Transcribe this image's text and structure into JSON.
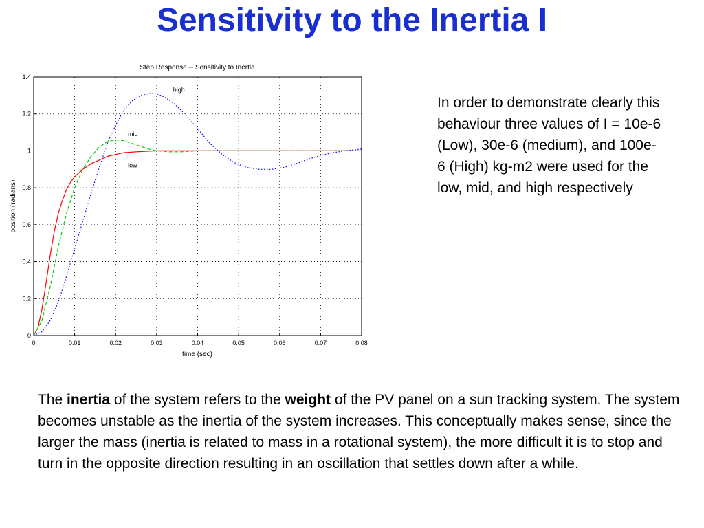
{
  "slide": {
    "title": "Sensitivity to the Inertia I",
    "side_note": "In order to demonstrate clearly this behaviour three values of I = 10e-6 (Low), 30e-6 (medium), and 100e-6 (High) kg-m2 were used for the low, mid, and high respectively",
    "body": {
      "p1": "The ",
      "b1": "inertia",
      "p2": " of the system refers to the ",
      "b2": "weight",
      "p3": " of the PV panel on a sun tracking system. The system becomes unstable as the inertia of the system increases. This conceptually makes sense, since the larger the mass (inertia is related to mass in a rotational system), the more difficult it is to stop and turn in the opposite direction resulting in an oscillation that settles down after a while."
    }
  },
  "colors": {
    "title": "#1a2fd0",
    "low": "#ff0000",
    "mid": "#00c800",
    "high": "#0000ff",
    "grid": "#000000"
  },
  "chart_data": {
    "type": "line",
    "title": "Step Response -- Sensitivity to Inertia",
    "xlabel": "time (sec)",
    "ylabel": "position (radians)",
    "xlim": [
      0,
      0.08
    ],
    "ylim": [
      0,
      1.4
    ],
    "xticks": [
      0,
      0.01,
      0.02,
      0.03,
      0.04,
      0.05,
      0.06,
      0.07,
      0.08
    ],
    "yticks": [
      0,
      0.2,
      0.4,
      0.6,
      0.8,
      1,
      1.2,
      1.4
    ],
    "xtick_labels": [
      "0",
      "0.01",
      "0.02",
      "0.03",
      "0.04",
      "0.05",
      "0.06",
      "0.07",
      "0.08"
    ],
    "ytick_labels": [
      "0",
      "0.2",
      "0.4",
      "0.6",
      "0.8",
      "1",
      "1.2",
      "1.4"
    ],
    "grid": true,
    "annotations": [
      {
        "text": "high",
        "x": 0.034,
        "y": 1.32
      },
      {
        "text": "mid",
        "x": 0.023,
        "y": 1.08
      },
      {
        "text": "low",
        "x": 0.023,
        "y": 0.91
      }
    ],
    "series": [
      {
        "name": "low",
        "style": "solid",
        "x": [
          0,
          0.001,
          0.002,
          0.003,
          0.004,
          0.005,
          0.006,
          0.007,
          0.008,
          0.009,
          0.01,
          0.012,
          0.014,
          0.016,
          0.018,
          0.02,
          0.022,
          0.025,
          0.03,
          0.04,
          0.05,
          0.06,
          0.07,
          0.08
        ],
        "y": [
          0,
          0.04,
          0.14,
          0.28,
          0.43,
          0.56,
          0.66,
          0.73,
          0.79,
          0.83,
          0.86,
          0.9,
          0.93,
          0.95,
          0.97,
          0.98,
          0.99,
          0.995,
          1.0,
          1.0,
          1.0,
          1.0,
          1.0,
          1.0
        ]
      },
      {
        "name": "mid",
        "style": "dashed",
        "x": [
          0,
          0.002,
          0.004,
          0.006,
          0.008,
          0.01,
          0.012,
          0.014,
          0.016,
          0.018,
          0.02,
          0.022,
          0.024,
          0.026,
          0.028,
          0.03,
          0.033,
          0.036,
          0.04,
          0.05,
          0.06,
          0.07,
          0.08
        ],
        "y": [
          0,
          0.08,
          0.26,
          0.48,
          0.66,
          0.8,
          0.9,
          0.97,
          1.02,
          1.05,
          1.06,
          1.055,
          1.04,
          1.025,
          1.01,
          1.0,
          0.995,
          0.995,
          1.0,
          1.0,
          1.0,
          1.0,
          1.0
        ]
      },
      {
        "name": "high",
        "style": "dotted",
        "x": [
          0,
          0.002,
          0.004,
          0.006,
          0.008,
          0.01,
          0.012,
          0.014,
          0.016,
          0.018,
          0.02,
          0.022,
          0.024,
          0.026,
          0.028,
          0.03,
          0.032,
          0.034,
          0.036,
          0.038,
          0.04,
          0.043,
          0.046,
          0.049,
          0.052,
          0.055,
          0.058,
          0.061,
          0.064,
          0.067,
          0.07,
          0.073,
          0.076,
          0.08
        ],
        "y": [
          0,
          0.02,
          0.08,
          0.18,
          0.32,
          0.47,
          0.62,
          0.77,
          0.91,
          1.04,
          1.14,
          1.22,
          1.27,
          1.3,
          1.31,
          1.31,
          1.29,
          1.26,
          1.22,
          1.17,
          1.12,
          1.04,
          0.98,
          0.935,
          0.91,
          0.9,
          0.9,
          0.91,
          0.93,
          0.955,
          0.975,
          0.99,
          1.0,
          1.01
        ]
      }
    ]
  }
}
